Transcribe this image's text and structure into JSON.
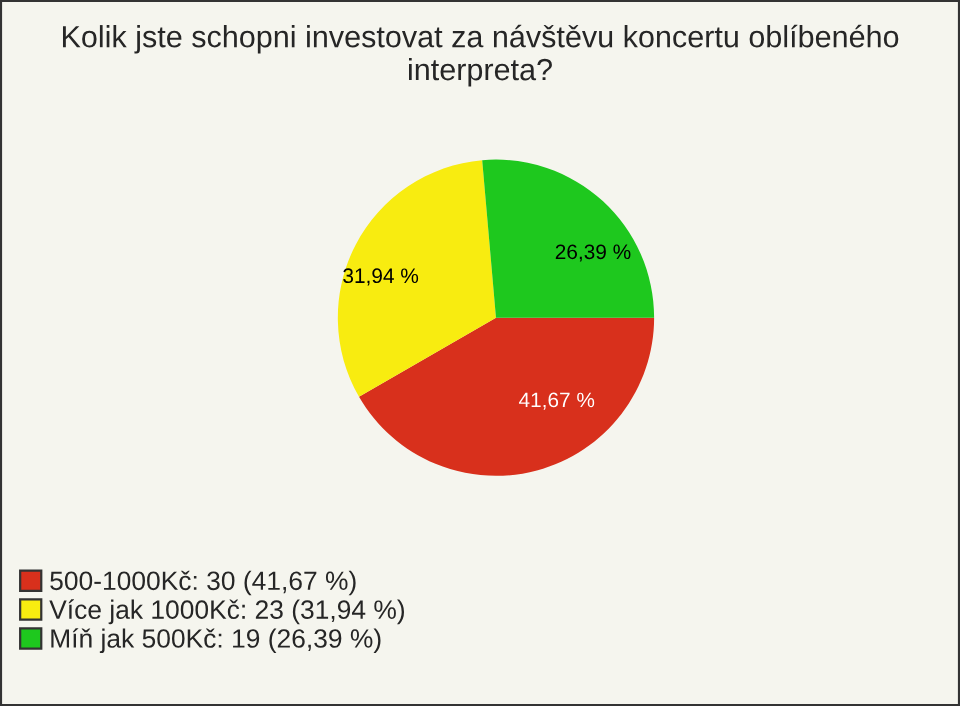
{
  "chart_data": {
    "type": "pie",
    "title": "Kolik jste schopni investovat za návštěvu koncertu oblíbeného interpreta?",
    "categories": [
      "500-1000Kč: 30 (41,67 %)",
      "Více jak 1000Kč: 23 (31,94 %)",
      "Míň jak 500Kč: 19 (26,39 %)"
    ],
    "values": [
      41.67,
      31.94,
      26.39
    ],
    "value_labels": [
      "41,67 %",
      "31,94 %",
      "26,39 %"
    ],
    "colors": [
      "#d8301c",
      "#f8ec10",
      "#1ec81e"
    ],
    "legend": "bottom left"
  }
}
